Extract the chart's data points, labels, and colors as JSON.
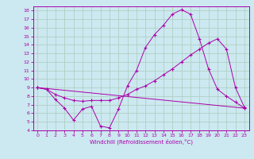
{
  "xlabel": "Windchill (Refroidissement éolien,°C)",
  "background_color": "#cce8f0",
  "grid_color": "#aaccbb",
  "line_color": "#aa00aa",
  "xlim": [
    -0.5,
    23.5
  ],
  "ylim": [
    4,
    18.5
  ],
  "xticks": [
    0,
    1,
    2,
    3,
    4,
    5,
    6,
    7,
    8,
    9,
    10,
    11,
    12,
    13,
    14,
    15,
    16,
    17,
    18,
    19,
    20,
    21,
    22,
    23
  ],
  "yticks": [
    4,
    5,
    6,
    7,
    8,
    9,
    10,
    11,
    12,
    13,
    14,
    15,
    16,
    17,
    18
  ],
  "series1_x": [
    0,
    1,
    2,
    3,
    4,
    5,
    6,
    7,
    8,
    9,
    10,
    11,
    12,
    13,
    14,
    15,
    16,
    17,
    18,
    19,
    20,
    21,
    22,
    23
  ],
  "series1_y": [
    9.0,
    8.8,
    7.6,
    6.6,
    5.2,
    6.5,
    6.8,
    4.5,
    4.3,
    6.5,
    9.2,
    11.0,
    13.7,
    15.2,
    16.3,
    17.6,
    18.1,
    17.6,
    14.7,
    11.2,
    8.8,
    8.0,
    7.3,
    6.6
  ],
  "series2_x": [
    0,
    1,
    2,
    3,
    4,
    5,
    6,
    7,
    8,
    9,
    10,
    11,
    12,
    13,
    14,
    15,
    16,
    17,
    18,
    19,
    20,
    21,
    22,
    23
  ],
  "series2_y": [
    9.0,
    8.8,
    8.2,
    7.8,
    7.5,
    7.4,
    7.5,
    7.5,
    7.5,
    7.8,
    8.2,
    8.8,
    9.2,
    9.8,
    10.5,
    11.2,
    12.0,
    12.8,
    13.5,
    14.2,
    14.7,
    13.5,
    9.0,
    6.7
  ],
  "series3_x": [
    0,
    23
  ],
  "series3_y": [
    9.0,
    6.6
  ]
}
